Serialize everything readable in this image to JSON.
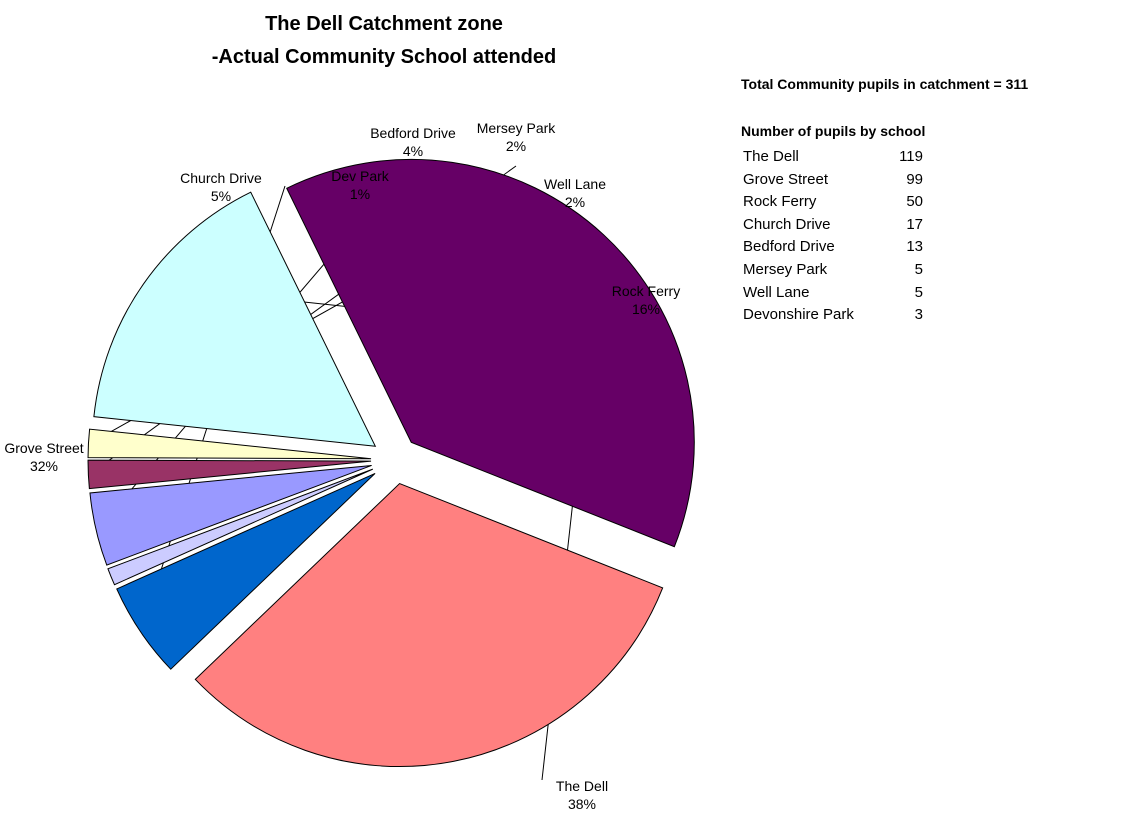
{
  "chart_data": {
    "type": "pie",
    "title": "The Dell Catchment zone",
    "subtitle": "-Actual Community School attended",
    "slices": [
      {
        "label": "Rock Ferry",
        "percent_label": "16%",
        "value": 50,
        "color": "#CCFFFF"
      },
      {
        "label": "The Dell",
        "percent_label": "38%",
        "value": 119,
        "color": "#660066"
      },
      {
        "label": "Grove Street",
        "percent_label": "32%",
        "value": 99,
        "color": "#FF8080"
      },
      {
        "label": "Church Drive",
        "percent_label": "5%",
        "value": 17,
        "color": "#0066CC"
      },
      {
        "label": "Dev Park",
        "percent_label": "1%",
        "value": 3,
        "color": "#CCCCFF"
      },
      {
        "label": "Bedford Drive",
        "percent_label": "4%",
        "value": 13,
        "color": "#9999FF"
      },
      {
        "label": "Mersey Park",
        "percent_label": "2%",
        "value": 5,
        "color": "#993366"
      },
      {
        "label": "Well Lane",
        "percent_label": "2%",
        "value": 5,
        "color": "#FFFFCC"
      }
    ],
    "exploded": true,
    "legend": "none"
  },
  "side_panel": {
    "total_note": "Total Community pupils in catchment = 311",
    "table_heading": "Number of pupils by school",
    "rows": [
      {
        "school": "The Dell",
        "count": "119"
      },
      {
        "school": "Grove Street",
        "count": "99"
      },
      {
        "school": "Rock Ferry",
        "count": "50"
      },
      {
        "school": "Church Drive",
        "count": "17"
      },
      {
        "school": "Bedford Drive",
        "count": "13"
      },
      {
        "school": "Mersey Park",
        "count": "5"
      },
      {
        "school": "Well Lane",
        "count": "5"
      },
      {
        "school": "Devonshire Park",
        "count": "3"
      }
    ]
  }
}
